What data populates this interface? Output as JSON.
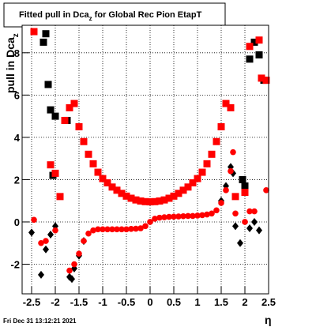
{
  "chart_data": {
    "type": "scatter",
    "title_parts": [
      "Fitted pull in Dca",
      "z",
      " for Global Rec Pion EtapT"
    ],
    "y_label_parts": [
      "pull in Dca",
      "z"
    ],
    "x_label": "η",
    "footer": "Fri Dec 31 13:12:21 2021",
    "xlim": [
      -2.7,
      2.5
    ],
    "ylim": [
      -3.4,
      9.3
    ],
    "xticks": [
      -2.5,
      -2,
      -1.5,
      -1,
      -0.5,
      0,
      0.5,
      1,
      1.5,
      2,
      2.5
    ],
    "yticks": [
      -2,
      0,
      2,
      4,
      6,
      8
    ],
    "grid": true,
    "series": [
      {
        "name": "black squares",
        "color": "#000000",
        "marker": "square",
        "x": [
          -2.2,
          -2.25,
          -2.15,
          -2.1,
          -2.0,
          -1.75,
          -2.05,
          1.95,
          2.0,
          2.2,
          2.3,
          2.4,
          2.1
        ],
        "values": [
          8.9,
          8.5,
          6.5,
          5.3,
          5.0,
          4.8,
          2.2,
          2.0,
          1.7,
          8.5,
          7.9,
          6.7,
          7.7
        ]
      },
      {
        "name": "black diamonds",
        "color": "#000000",
        "marker": "diamond",
        "x": [
          -1.7,
          -1.6,
          -1.5,
          -1.4,
          1.5,
          1.6,
          1.7,
          -2.5,
          -2.3,
          -2.2,
          -2.1,
          -2.0,
          -1.65,
          1.75,
          1.8,
          1.9,
          2.1,
          2.2,
          2.3
        ],
        "values": [
          -2.6,
          -2.2,
          -1.6,
          -0.9,
          1.0,
          1.7,
          2.6,
          -0.5,
          -2.5,
          -1.3,
          -0.6,
          -0.2,
          -2.7,
          2.3,
          -0.2,
          -1.0,
          -0.3,
          0.0,
          -0.4
        ]
      },
      {
        "name": "red squares",
        "color": "#ff0000",
        "marker": "square",
        "x": [
          -1.7,
          -1.6,
          -1.5,
          -1.4,
          -1.3,
          -1.2,
          -1.1,
          -1.0,
          -0.9,
          -0.8,
          -0.7,
          -0.6,
          -0.5,
          -0.4,
          -0.3,
          -0.2,
          -0.1,
          0,
          0.1,
          0.2,
          0.3,
          0.4,
          0.5,
          0.6,
          0.7,
          0.8,
          0.9,
          1.0,
          1.1,
          1.2,
          1.3,
          1.4,
          1.5,
          1.6,
          1.7,
          -2.45,
          -2.1,
          -2.0,
          -1.9,
          -1.8,
          2.1,
          2.3,
          2.35,
          2.45,
          2.0,
          1.8
        ],
        "values": [
          5.4,
          5.6,
          4.5,
          3.8,
          3.2,
          2.75,
          2.35,
          2.05,
          1.85,
          1.65,
          1.5,
          1.35,
          1.22,
          1.12,
          1.04,
          0.99,
          0.96,
          0.95,
          0.96,
          0.99,
          1.04,
          1.12,
          1.22,
          1.35,
          1.5,
          1.65,
          1.85,
          2.05,
          2.35,
          2.75,
          3.2,
          3.8,
          4.5,
          5.6,
          5.4,
          9.0,
          2.7,
          2.3,
          1.2,
          4.8,
          8.3,
          8.6,
          6.8,
          6.7,
          1.4,
          1.2
        ]
      },
      {
        "name": "red circles",
        "color": "#ff0000",
        "marker": "circle",
        "x": [
          -1.7,
          -1.6,
          -1.5,
          -1.4,
          -1.3,
          -1.2,
          -1.1,
          -1.0,
          -0.9,
          -0.8,
          -0.7,
          -0.6,
          -0.5,
          -0.4,
          -0.3,
          -0.2,
          -0.1,
          0,
          0.1,
          0.2,
          0.3,
          0.4,
          0.5,
          0.6,
          0.7,
          0.8,
          0.9,
          1.0,
          1.1,
          1.2,
          1.3,
          1.4,
          1.5,
          1.6,
          1.7,
          1.75,
          -2.45,
          -2.3,
          -2.2,
          -2.0,
          1.8,
          2.0,
          2.1,
          2.2,
          2.45
        ],
        "values": [
          -2.3,
          -2.0,
          -1.5,
          -0.9,
          -0.55,
          -0.4,
          -0.35,
          -0.35,
          -0.35,
          -0.35,
          -0.35,
          -0.35,
          -0.35,
          -0.33,
          -0.32,
          -0.3,
          -0.2,
          0.0,
          0.15,
          0.2,
          0.22,
          0.24,
          0.25,
          0.26,
          0.27,
          0.28,
          0.28,
          0.3,
          0.32,
          0.35,
          0.4,
          0.55,
          0.9,
          1.5,
          2.4,
          3.3,
          0.1,
          -1.0,
          -0.9,
          -0.4,
          0.4,
          0.0,
          0.5,
          0.5,
          1.5
        ]
      }
    ]
  }
}
